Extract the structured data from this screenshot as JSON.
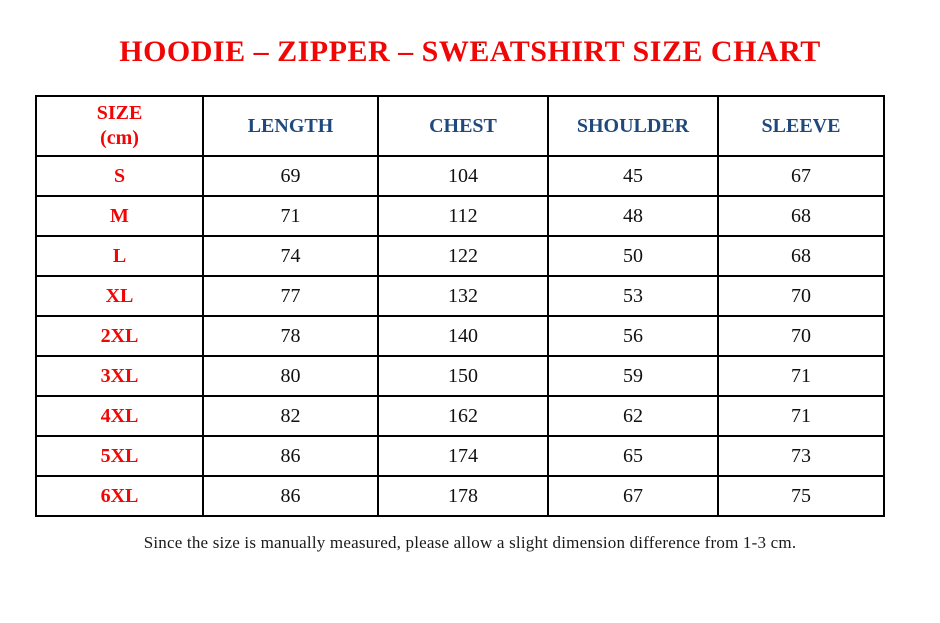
{
  "page": {
    "title": "HOODIE – ZIPPER – SWEATSHIRT SIZE CHART",
    "footnote": "Since the size is manually measured, please allow a slight dimension difference from 1-3 cm.",
    "stray_dot": "."
  },
  "colors": {
    "title_red": "#f10606",
    "size_red": "#f10606",
    "header_blue": "#1f497d",
    "body_text": "#111111",
    "border": "#000000",
    "background": "#ffffff"
  },
  "table": {
    "size_header": {
      "line1": "SIZE",
      "line2": "(cm)"
    },
    "measure_headers": [
      "LENGTH",
      "CHEST",
      "SHOULDER",
      "SLEEVE"
    ],
    "rows": [
      {
        "size": "S",
        "values": [
          "69",
          "104",
          "45",
          "67"
        ]
      },
      {
        "size": "M",
        "values": [
          "71",
          "112",
          "48",
          "68"
        ]
      },
      {
        "size": "L",
        "values": [
          "74",
          "122",
          "50",
          "68"
        ]
      },
      {
        "size": "XL",
        "values": [
          "77",
          "132",
          "53",
          "70"
        ]
      },
      {
        "size": "2XL",
        "values": [
          "78",
          "140",
          "56",
          "70"
        ]
      },
      {
        "size": "3XL",
        "values": [
          "80",
          "150",
          "59",
          "71"
        ]
      },
      {
        "size": "4XL",
        "values": [
          "82",
          "162",
          "62",
          "71"
        ]
      },
      {
        "size": "5XL",
        "values": [
          "86",
          "174",
          "65",
          "73"
        ]
      },
      {
        "size": "6XL",
        "values": [
          "86",
          "178",
          "67",
          "75"
        ]
      }
    ]
  },
  "chart_data": {
    "type": "table",
    "title": "HOODIE – ZIPPER – SWEATSHIRT SIZE CHART",
    "units": "cm",
    "columns": [
      "SIZE (cm)",
      "LENGTH",
      "CHEST",
      "SHOULDER",
      "SLEEVE"
    ],
    "rows": [
      [
        "S",
        69,
        104,
        45,
        67
      ],
      [
        "M",
        71,
        112,
        48,
        68
      ],
      [
        "L",
        74,
        122,
        50,
        68
      ],
      [
        "XL",
        77,
        132,
        53,
        70
      ],
      [
        "2XL",
        78,
        140,
        56,
        70
      ],
      [
        "3XL",
        80,
        150,
        59,
        71
      ],
      [
        "4XL",
        82,
        162,
        62,
        71
      ],
      [
        "5XL",
        86,
        174,
        65,
        73
      ],
      [
        "6XL",
        86,
        178,
        67,
        75
      ]
    ],
    "footnote": "Since the size is manually measured, please allow a slight dimension difference from 1-3 cm."
  }
}
